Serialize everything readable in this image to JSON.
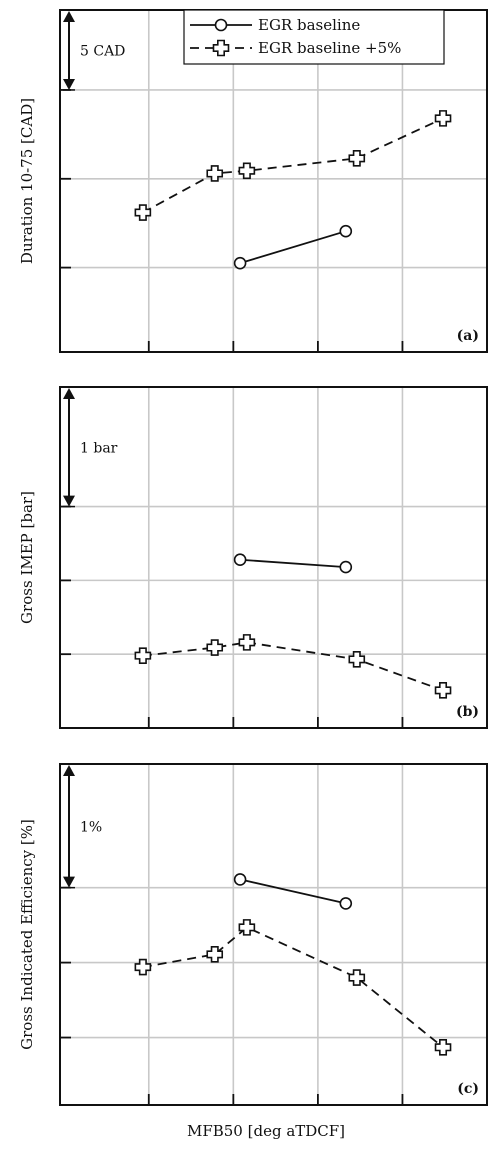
{
  "chart_data": [
    {
      "type": "line",
      "panel_label": "(a)",
      "ylabel": "Duration 10-75 [CAD]",
      "scale_bar": "5 CAD",
      "x_axis_label": "MFB50 [deg aTDCF]",
      "legend": [
        "EGR baseline",
        "EGR baseline +5%"
      ],
      "series": [
        {
          "name": "EGR baseline",
          "style": "solid-circle",
          "x": [
            10.8,
            23.3
          ],
          "y": [
            0.5,
            4.1
          ]
        },
        {
          "name": "EGR baseline +5%",
          "style": "dashed-cross",
          "x": [
            -0.7,
            7.8,
            11.6,
            24.6,
            34.8
          ],
          "y": [
            6.2,
            10.6,
            10.9,
            12.3,
            16.8
          ]
        }
      ],
      "ylim": [
        -9.5,
        29
      ],
      "grid": true
    },
    {
      "type": "line",
      "panel_label": "(b)",
      "ylabel": "Gross IMEP [bar]",
      "scale_bar": "1 bar",
      "x_axis_label": "MFB50 [deg aTDCF]",
      "series": [
        {
          "name": "EGR baseline",
          "style": "solid-circle",
          "x": [
            10.8,
            23.3
          ],
          "y": [
            1.28,
            1.18
          ]
        },
        {
          "name": "EGR baseline +5%",
          "style": "dashed-cross",
          "x": [
            -0.7,
            7.8,
            11.6,
            24.6,
            34.8
          ],
          "y": [
            -0.02,
            0.09,
            0.16,
            -0.07,
            -0.49
          ]
        }
      ],
      "ylim": [
        -1.0,
        3.62
      ],
      "grid": true
    },
    {
      "type": "line",
      "panel_label": "(c)",
      "ylabel": "Gross Indicated Efficiency  [%]",
      "scale_bar": "1%",
      "x_axis_label": "MFB50 [deg aTDCF]",
      "series": [
        {
          "name": "EGR baseline",
          "style": "solid-circle",
          "x": [
            10.8,
            23.3
          ],
          "y": [
            1.11,
            0.79
          ]
        },
        {
          "name": "EGR baseline +5%",
          "style": "dashed-cross",
          "x": [
            -0.7,
            7.8,
            11.6,
            24.6,
            34.8
          ],
          "y": [
            -0.06,
            0.11,
            0.47,
            -0.2,
            -1.13
          ]
        }
      ],
      "ylim": [
        -1.9,
        2.65
      ],
      "grid": true
    }
  ],
  "xlabel": "MFB50 [deg aTDCF]",
  "xlim": [
    -10.5,
    40.0
  ],
  "xgrid": [
    0,
    10,
    20,
    30
  ],
  "ygrid": [
    [
      0,
      10,
      20
    ],
    [
      0,
      1,
      2
    ],
    [
      -1,
      0,
      1
    ]
  ],
  "scale_bar_span": [
    [
      20,
      29
    ],
    [
      2,
      3.62
    ],
    [
      1,
      2.65
    ]
  ]
}
